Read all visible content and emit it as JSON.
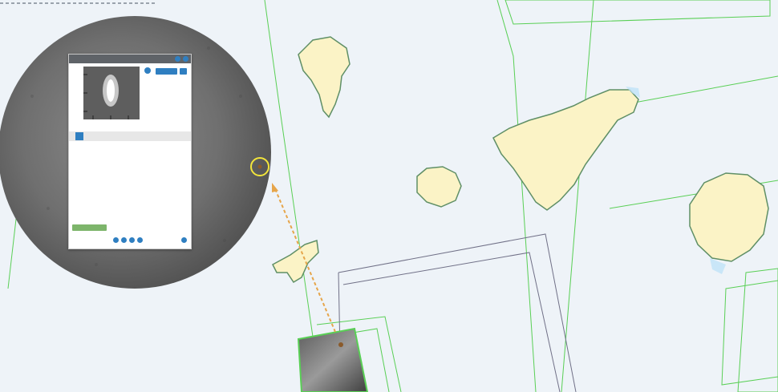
{
  "colors": {
    "sea": "#eef3f8",
    "land": "#fbf3c6",
    "land_border": "#5f8f66",
    "footprint_green": "#59cf55",
    "footprint_gray": "#707087",
    "highlight_marker": "#f2e53b",
    "arrow": "#e6a54a",
    "panel_button": "#2f7fc1",
    "panel_action": "#7db56b"
  },
  "map": {
    "features": [
      "la-palma",
      "tenerife",
      "la-gomera",
      "el-hierro",
      "gran-canaria"
    ],
    "overlays": [
      "satellite-footprints",
      "sar-image-chip",
      "magnifier-lens",
      "vessel-detection-panel"
    ]
  },
  "popup": {
    "title": "",
    "detection_bar_label": "",
    "fields": [
      {
        "label": "",
        "value": ""
      },
      {
        "label": "",
        "value": ""
      },
      {
        "label": "",
        "value": ""
      },
      {
        "label": "",
        "value": ""
      },
      {
        "label": "",
        "value": ""
      },
      {
        "label": "",
        "value": ""
      },
      {
        "label": "",
        "value": ""
      },
      {
        "label": "",
        "value": ""
      },
      {
        "label": "",
        "value": ""
      },
      {
        "label": "",
        "value": ""
      },
      {
        "label": "",
        "value": ""
      },
      {
        "label": "",
        "value": ""
      },
      {
        "label": "",
        "value": ""
      },
      {
        "label": "",
        "value": ""
      },
      {
        "label": "",
        "value": ""
      },
      {
        "label": "",
        "value": ""
      },
      {
        "label": "",
        "value": ""
      },
      {
        "label": "",
        "value": ""
      },
      {
        "label": "",
        "value": ""
      },
      {
        "label": "",
        "value": ""
      }
    ],
    "action_label": "",
    "buttons": [
      "",
      ""
    ]
  }
}
